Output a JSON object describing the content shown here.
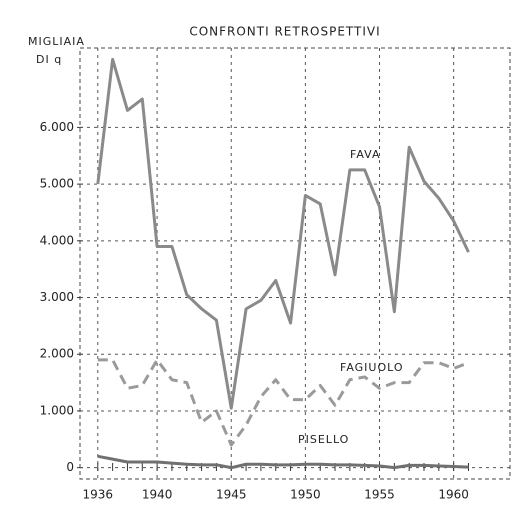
{
  "chart_data": {
    "type": "line",
    "title": "CONFRONTI RETROSPETTIVI",
    "ylabel": [
      "MIGLIAIA",
      "DI q"
    ],
    "x": [
      1936,
      1937,
      1938,
      1939,
      1940,
      1941,
      1942,
      1943,
      1944,
      1945,
      1946,
      1947,
      1948,
      1949,
      1950,
      1951,
      1952,
      1953,
      1954,
      1955,
      1956,
      1957,
      1958,
      1959,
      1960,
      1961
    ],
    "xlim": [
      1934.8,
      1963.8
    ],
    "xticks": [
      1936,
      1940,
      1945,
      1950,
      1955,
      1960
    ],
    "ylim": [
      -200,
      7400
    ],
    "yticks": [
      0,
      {
        "value": 1000,
        "label": "1.000"
      },
      {
        "value": 2000,
        "label": "2.000"
      },
      {
        "value": 3000,
        "label": "3.000"
      },
      {
        "value": 4000,
        "label": "4.000"
      },
      {
        "value": 5000,
        "label": "5.000"
      },
      {
        "value": 6000,
        "label": "6.000"
      }
    ],
    "grid": true,
    "series": [
      {
        "name": "FAVA",
        "color": "#8a8a8a",
        "dash": false,
        "values": [
          5000,
          7200,
          6300,
          6500,
          3900,
          3900,
          3050,
          2800,
          2600,
          1050,
          2800,
          2950,
          3300,
          2550,
          4800,
          4650,
          3400,
          5250,
          5250,
          4600,
          2750,
          5650,
          5050,
          4750,
          4350,
          3800
        ]
      },
      {
        "name": "FAGIUOLO",
        "color": "#9a9a9a",
        "dash": true,
        "values": [
          1900,
          1900,
          1400,
          1450,
          1900,
          1550,
          1500,
          800,
          1000,
          400,
          750,
          1250,
          1550,
          1200,
          1200,
          1450,
          1100,
          1550,
          1600,
          1400,
          1500,
          1500,
          1850,
          1850,
          1750,
          1850
        ]
      },
      {
        "name": "PISELLO",
        "color": "#707070",
        "dash": false,
        "values": [
          200,
          150,
          100,
          100,
          100,
          80,
          60,
          50,
          50,
          0,
          60,
          60,
          50,
          50,
          60,
          60,
          50,
          50,
          40,
          30,
          0,
          40,
          40,
          30,
          20,
          10
        ]
      }
    ]
  }
}
